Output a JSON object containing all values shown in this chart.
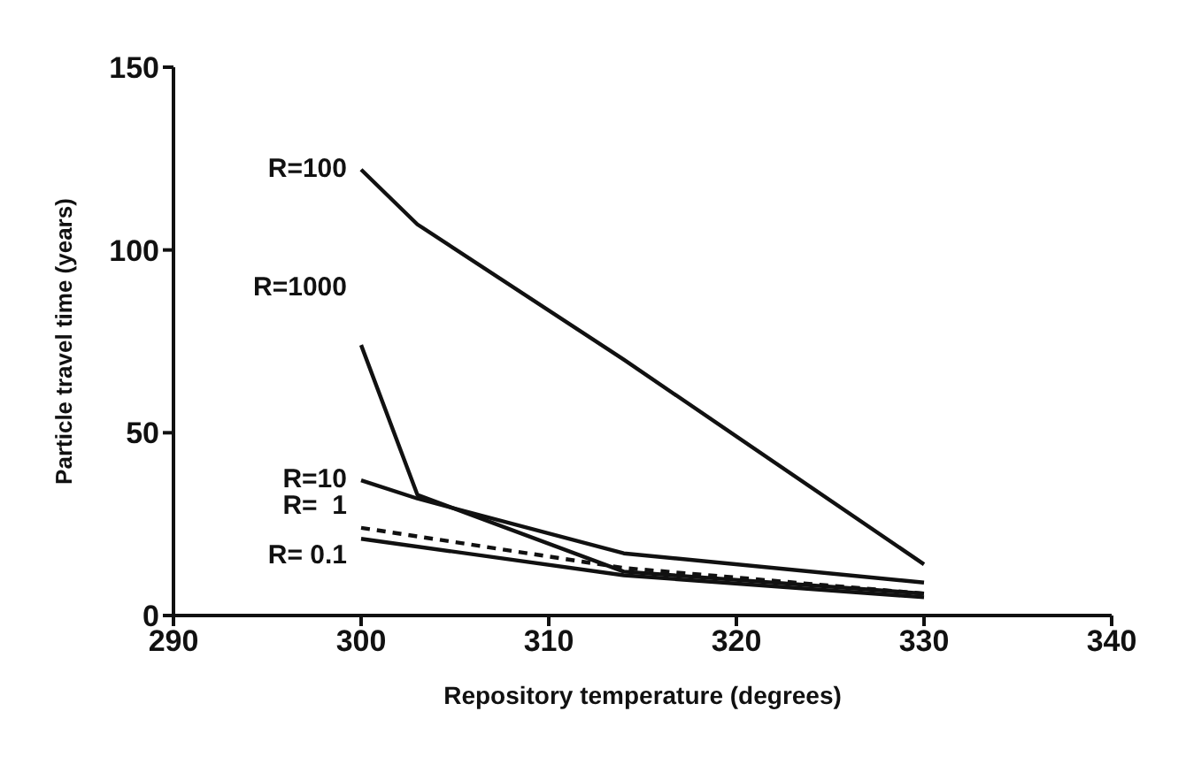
{
  "chart_data": {
    "type": "line",
    "xlabel": "Repository temperature (degrees)",
    "ylabel": "Particle travel time (years)",
    "xlim": [
      290,
      340
    ],
    "xticks": [
      290,
      300,
      310,
      320,
      330,
      340
    ],
    "ylim": [
      0,
      150
    ],
    "yticks": [
      0,
      50,
      100,
      150
    ],
    "grid": false,
    "legend": false,
    "marker": "none",
    "series": [
      {
        "name": "R=100",
        "color": "#111111",
        "x": [
          300,
          303,
          314,
          330
        ],
        "values": [
          122,
          107,
          70,
          14
        ]
      },
      {
        "name": "R=1000",
        "color": "#111111",
        "x": [
          300,
          303,
          314,
          330
        ],
        "values": [
          74,
          33,
          12,
          6
        ]
      },
      {
        "name": "R=10",
        "color": "#111111",
        "x": [
          300,
          303,
          314,
          330
        ],
        "values": [
          37,
          32,
          17,
          9
        ]
      },
      {
        "name": "R=  1",
        "color": "#111111",
        "line_style": "dashed",
        "x": [
          300,
          314,
          330
        ],
        "values": [
          24,
          13,
          6
        ]
      },
      {
        "name": "R= 0.1",
        "color": "#111111",
        "x": [
          300,
          314,
          330
        ],
        "values": [
          21,
          11,
          5
        ]
      }
    ]
  }
}
